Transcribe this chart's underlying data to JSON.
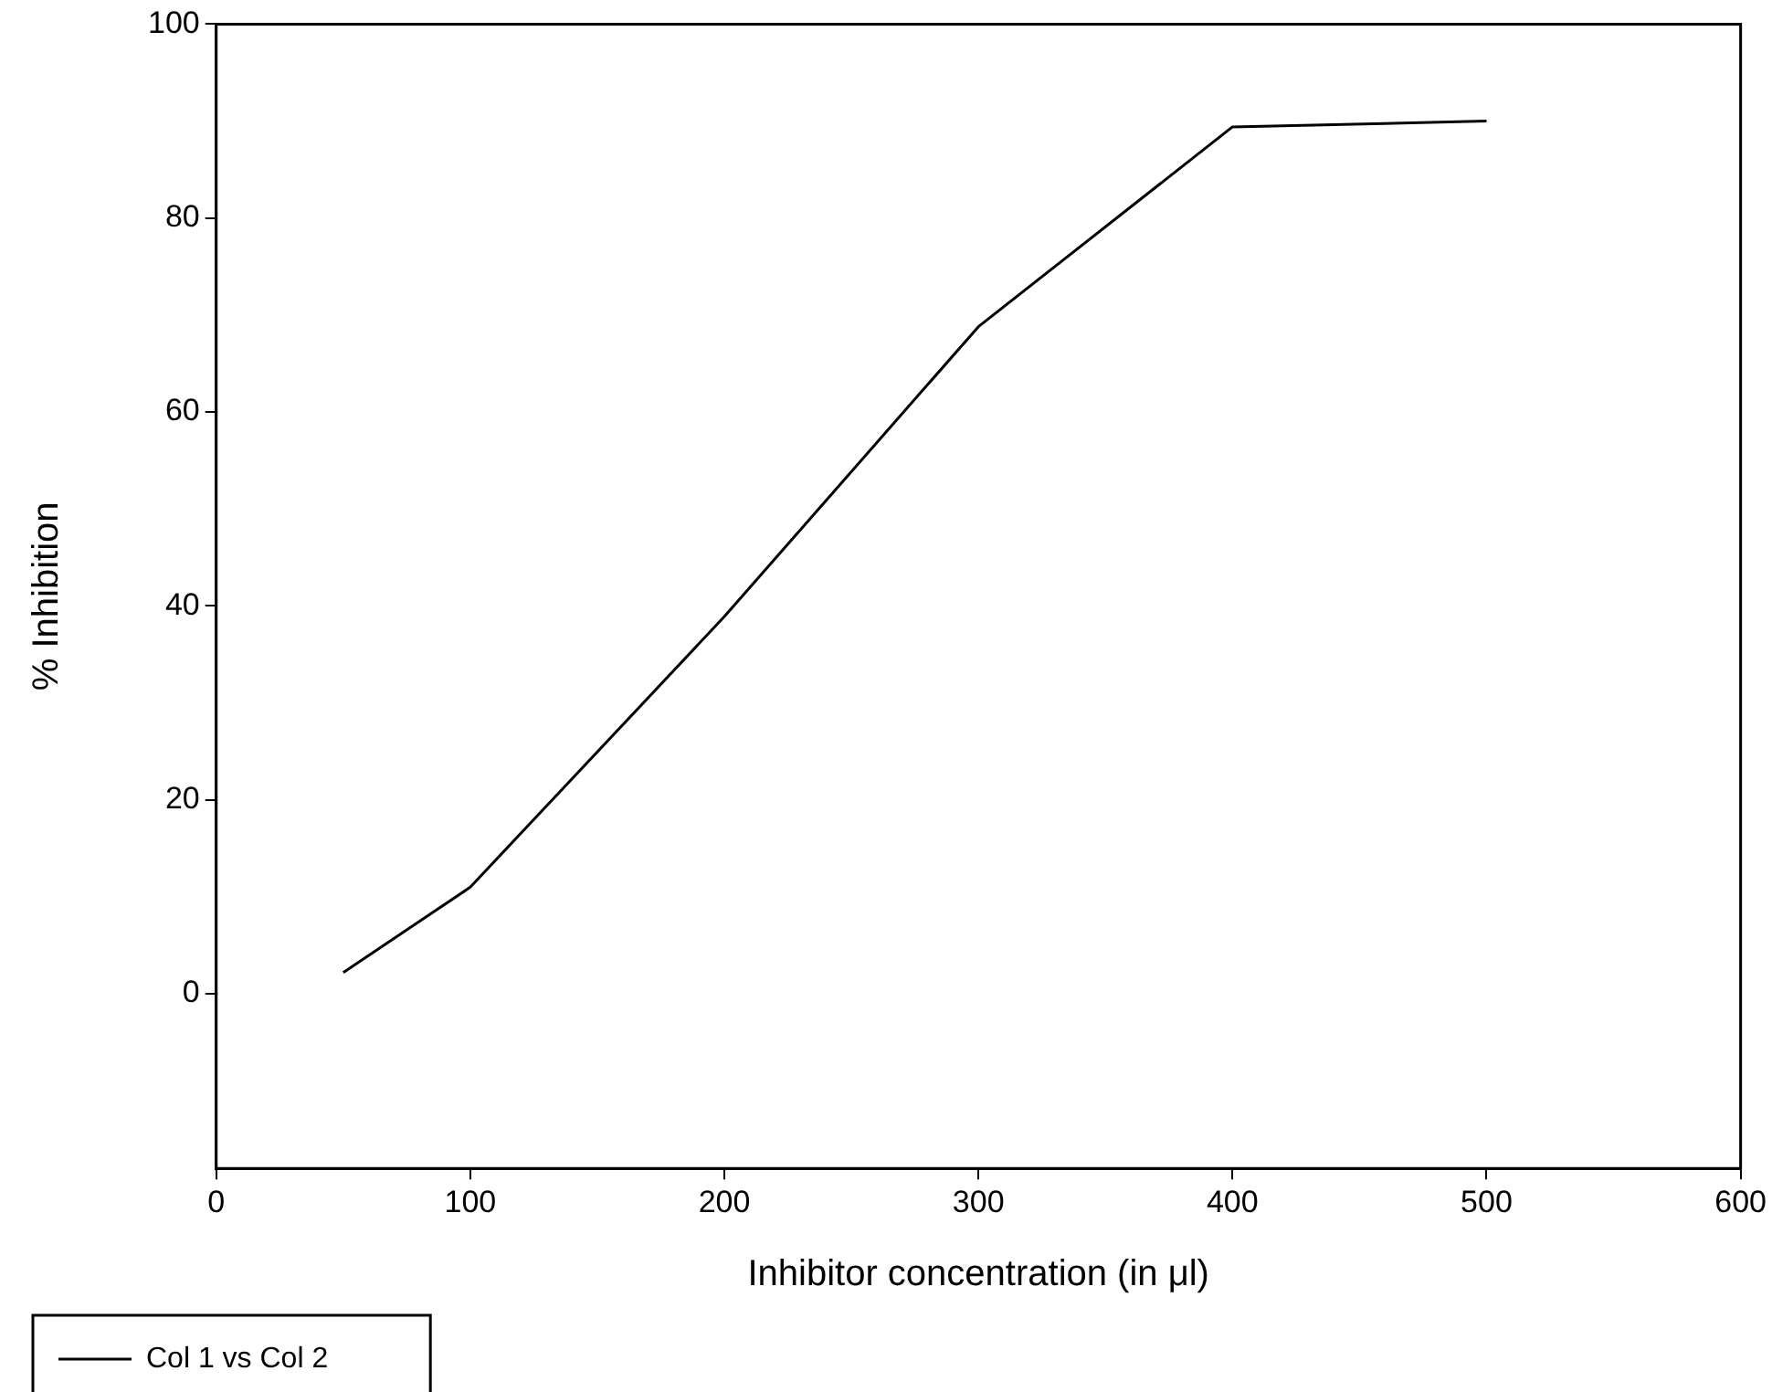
{
  "chart_data": {
    "type": "line",
    "xlabel": "Inhibitor concentration (in μl)",
    "ylabel": "% Inhibition",
    "x": [
      50,
      100,
      200,
      300,
      400,
      500
    ],
    "series": [
      {
        "name": "Col 1 vs Col 2",
        "color": "#000000",
        "values": [
          2.2,
          11,
          38.9,
          68.8,
          89.4,
          90
        ]
      }
    ],
    "xlim": [
      0,
      600
    ],
    "xticks": [
      0,
      100,
      200,
      300,
      400,
      500,
      600
    ],
    "ylim": [
      -18,
      100
    ],
    "yticks": [
      0,
      20,
      40,
      60,
      80,
      100
    ],
    "grid": false,
    "legend": "bottom left",
    "marker": "none",
    "line_style": "solid"
  }
}
